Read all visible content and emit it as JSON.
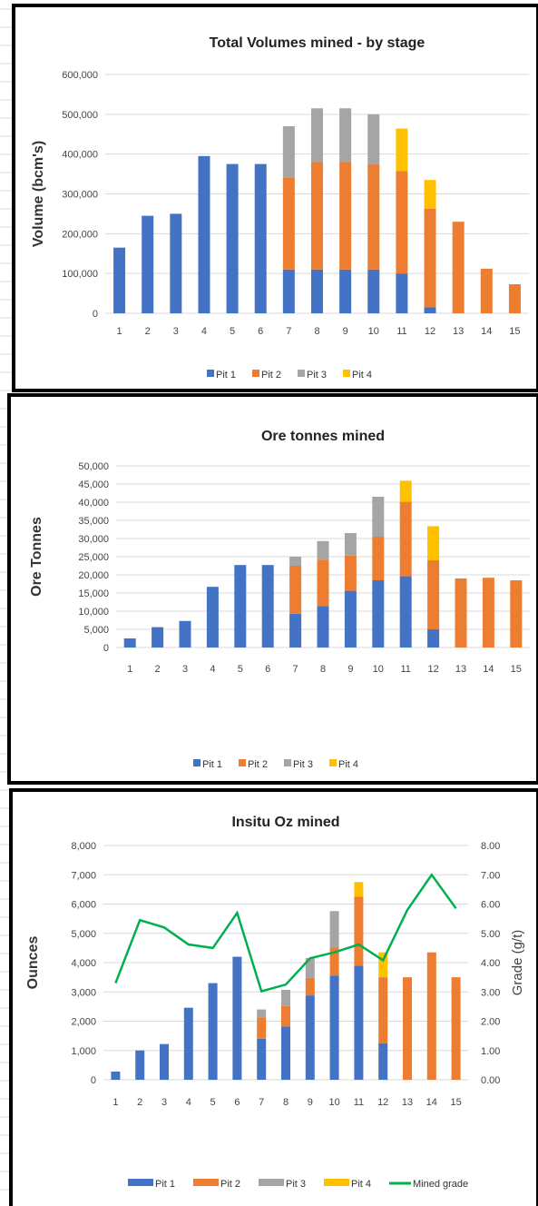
{
  "chart_data": [
    {
      "type": "bar",
      "stacked": true,
      "title": "Total Volumes mined - by stage",
      "ylabel": "Volume (bcm's)",
      "ylim": [
        0,
        600000
      ],
      "yticks": [
        "0",
        "100,000",
        "200,000",
        "300,000",
        "400,000",
        "500,000",
        "600,000"
      ],
      "grid": true,
      "legend": "bottom",
      "categories": [
        "1",
        "2",
        "3",
        "4",
        "5",
        "6",
        "7",
        "8",
        "9",
        "10",
        "11",
        "12",
        "13",
        "14",
        "15"
      ],
      "series": [
        {
          "name": "Pit 1",
          "color": "#4472C4",
          "values": [
            165000,
            245000,
            250000,
            395000,
            375000,
            375000,
            110000,
            110000,
            110000,
            110000,
            100000,
            15000,
            0,
            0,
            0
          ]
        },
        {
          "name": "Pit 2",
          "color": "#ED7D31",
          "values": [
            0,
            0,
            0,
            0,
            0,
            0,
            230000,
            270000,
            270000,
            265000,
            257000,
            248000,
            230000,
            112000,
            73000
          ]
        },
        {
          "name": "Pit 3",
          "color": "#A5A5A5",
          "values": [
            0,
            0,
            0,
            0,
            0,
            0,
            130000,
            135000,
            135000,
            125000,
            0,
            0,
            0,
            0,
            0
          ]
        },
        {
          "name": "Pit 4",
          "color": "#FFC000",
          "values": [
            0,
            0,
            0,
            0,
            0,
            0,
            0,
            0,
            0,
            0,
            107000,
            72000,
            0,
            0,
            0
          ]
        }
      ]
    },
    {
      "type": "bar",
      "stacked": true,
      "title": "Ore tonnes mined",
      "ylabel": "Ore Tonnes",
      "ylim": [
        0,
        50000
      ],
      "yticks": [
        "0",
        "5,000",
        "10,000",
        "15,000",
        "20,000",
        "25,000",
        "30,000",
        "35,000",
        "40,000",
        "45,000",
        "50,000"
      ],
      "grid": true,
      "legend": "bottom",
      "categories": [
        "1",
        "2",
        "3",
        "4",
        "5",
        "6",
        "7",
        "8",
        "9",
        "10",
        "11",
        "12",
        "13",
        "14",
        "15"
      ],
      "series": [
        {
          "name": "Pit 1",
          "color": "#4472C4",
          "values": [
            2500,
            5600,
            7300,
            16700,
            22700,
            22700,
            9300,
            11400,
            15600,
            18500,
            19600,
            5000,
            0,
            0,
            0
          ]
        },
        {
          "name": "Pit 2",
          "color": "#ED7D31",
          "values": [
            0,
            0,
            0,
            0,
            0,
            0,
            13200,
            12800,
            9700,
            12000,
            20500,
            19000,
            19000,
            19200,
            18500
          ]
        },
        {
          "name": "Pit 3",
          "color": "#A5A5A5",
          "values": [
            0,
            0,
            0,
            0,
            0,
            0,
            2500,
            5100,
            6200,
            11000,
            0,
            0,
            0,
            0,
            0
          ]
        },
        {
          "name": "Pit 4",
          "color": "#FFC000",
          "values": [
            0,
            0,
            0,
            0,
            0,
            0,
            0,
            0,
            0,
            0,
            5800,
            9400,
            0,
            0,
            0
          ]
        }
      ]
    },
    {
      "type": "bar",
      "stacked": true,
      "title": "Insitu Oz mined",
      "ylabel": "Ounces",
      "y2label": "Grade (g/t)",
      "ylim": [
        0,
        8000
      ],
      "y2lim": [
        0,
        8
      ],
      "yticks": [
        "0",
        "1,000",
        "2,000",
        "3,000",
        "4,000",
        "5,000",
        "6,000",
        "7,000",
        "8,000"
      ],
      "y2ticks": [
        "0.00",
        "1.00",
        "2.00",
        "3.00",
        "4.00",
        "5.00",
        "6.00",
        "7.00",
        "8.00"
      ],
      "grid": true,
      "legend": "bottom",
      "categories": [
        "1",
        "2",
        "3",
        "4",
        "5",
        "6",
        "7",
        "8",
        "9",
        "10",
        "11",
        "12",
        "13",
        "14",
        "15"
      ],
      "series": [
        {
          "name": "Pit 1",
          "color": "#4472C4",
          "values": [
            280,
            1000,
            1220,
            2460,
            3300,
            4200,
            1400,
            1820,
            2880,
            3560,
            3900,
            1250,
            0,
            0,
            0
          ]
        },
        {
          "name": "Pit 2",
          "color": "#ED7D31",
          "values": [
            0,
            0,
            0,
            0,
            0,
            0,
            730,
            700,
            600,
            950,
            2350,
            2250,
            3500,
            4350,
            3500
          ]
        },
        {
          "name": "Pit 3",
          "color": "#A5A5A5",
          "values": [
            0,
            0,
            0,
            0,
            0,
            0,
            270,
            550,
            680,
            1250,
            0,
            0,
            0,
            0,
            0
          ]
        },
        {
          "name": "Pit 4",
          "color": "#FFC000",
          "values": [
            0,
            0,
            0,
            0,
            0,
            0,
            0,
            0,
            0,
            0,
            500,
            850,
            0,
            0,
            0
          ]
        }
      ],
      "line_series": {
        "name": "Mined grade",
        "color": "#00B050",
        "values": [
          3.3,
          5.45,
          5.2,
          4.62,
          4.5,
          5.7,
          3.02,
          3.25,
          4.15,
          4.35,
          4.62,
          4.08,
          5.8,
          7.0,
          5.85
        ]
      }
    }
  ]
}
